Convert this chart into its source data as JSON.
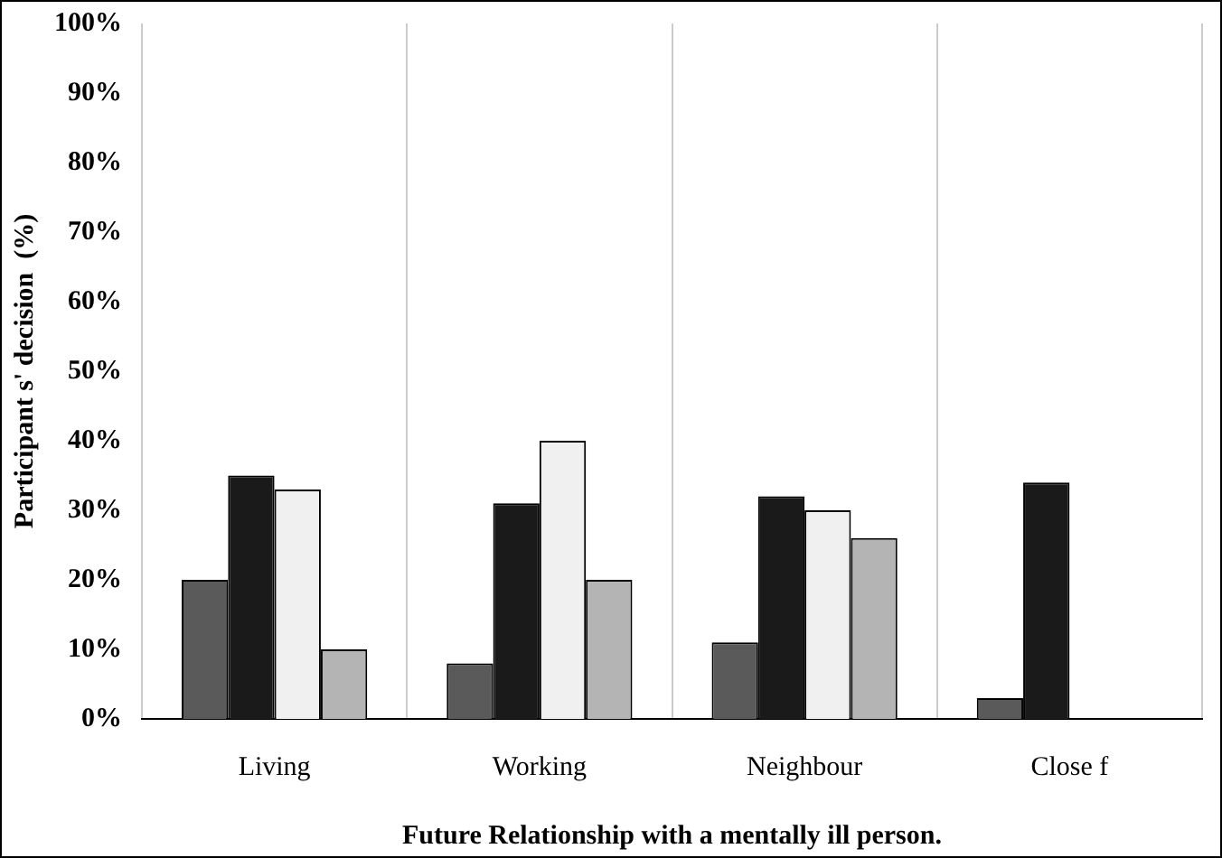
{
  "chart_data": {
    "type": "bar",
    "xlabel": "Future Relationship with a mentally ill person.",
    "ylabel": "Participant s' decision  (%)",
    "categories": [
      "Living",
      "Working",
      "Neighbour",
      "Close f"
    ],
    "series": [
      {
        "color": "#5a5a5a",
        "values": [
          20,
          8,
          11,
          3
        ]
      },
      {
        "color": "#1a1a1a",
        "values": [
          35,
          31,
          32,
          34
        ]
      },
      {
        "color": "#f0f0f0",
        "values": [
          33,
          40,
          30,
          null
        ]
      },
      {
        "color": "#b4b4b4",
        "values": [
          10,
          20,
          26,
          null
        ]
      }
    ],
    "ylim": [
      0,
      100
    ],
    "yticks": [
      {
        "value": 0,
        "label": "0%"
      },
      {
        "value": 10,
        "label": "10%"
      },
      {
        "value": 20,
        "label": "20%"
      },
      {
        "value": 30,
        "label": "30%"
      },
      {
        "value": 40,
        "label": "40%"
      },
      {
        "value": 50,
        "label": "50%"
      },
      {
        "value": 60,
        "label": "60%"
      },
      {
        "value": 70,
        "label": "70%"
      },
      {
        "value": 80,
        "label": "80%"
      },
      {
        "value": 90,
        "label": "90%"
      },
      {
        "value": 100,
        "label": "100%"
      }
    ],
    "grid": "x"
  }
}
